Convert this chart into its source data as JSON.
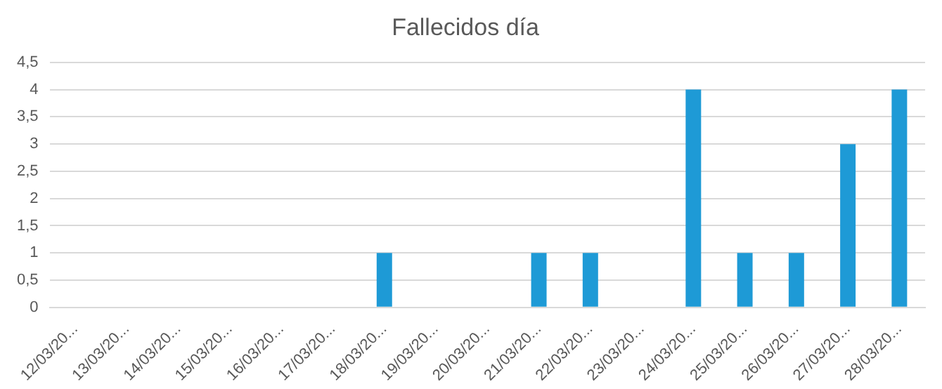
{
  "chart_data": {
    "type": "bar",
    "title": "Fallecidos día",
    "categories": [
      "12/03/20...",
      "13/03/20...",
      "14/03/20...",
      "15/03/20...",
      "16/03/20...",
      "17/03/20...",
      "18/03/20...",
      "19/03/20...",
      "20/03/20...",
      "21/03/20...",
      "22/03/20...",
      "23/03/20...",
      "24/03/20...",
      "25/03/20...",
      "26/03/20...",
      "27/03/20...",
      "28/03/20..."
    ],
    "values": [
      0,
      0,
      0,
      0,
      0,
      0,
      1,
      0,
      0,
      1,
      1,
      0,
      4,
      1,
      1,
      3,
      4
    ],
    "color": "#1e9ad6",
    "ylim": [
      0,
      4.5
    ],
    "yticks": [
      0,
      {
        "value": 0.5,
        "label": "0,5"
      },
      1,
      {
        "value": 1.5,
        "label": "1,5"
      },
      2,
      {
        "value": 2.5,
        "label": "2,5"
      },
      3,
      {
        "value": 3.5,
        "label": "3,5"
      },
      4,
      {
        "value": 4.5,
        "label": "4,5"
      }
    ],
    "grid": "y"
  }
}
